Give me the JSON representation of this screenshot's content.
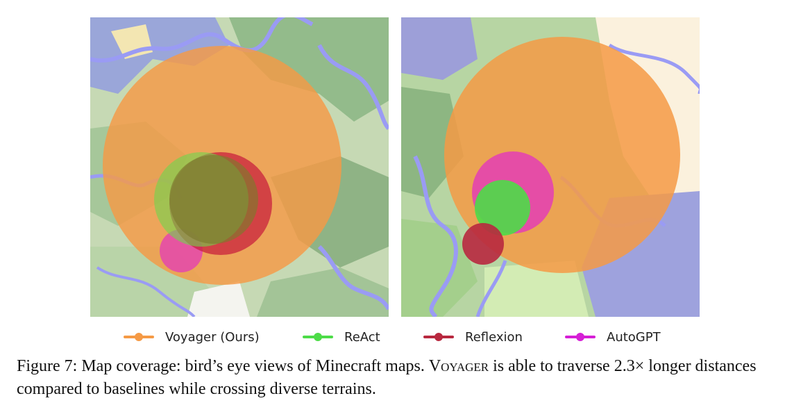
{
  "colors": {
    "voyager": "#f59a45",
    "react": "#4ddc48",
    "reflexion": "#b8283f",
    "autogpt": "#e33bb8",
    "water": "#9a9bf4",
    "forest": "#8eb886",
    "plains": "#c9dbb7",
    "sand": "#f5e7b4",
    "snow": "#faf0dc"
  },
  "legend": [
    {
      "key": "voyager",
      "label": "Voyager (Ours)"
    },
    {
      "key": "react",
      "label": "ReAct"
    },
    {
      "key": "reflexion",
      "label": "Reflexion"
    },
    {
      "key": "autogpt",
      "label": "AutoGPT"
    }
  ],
  "caption": {
    "prefix": "Figure 7: Map coverage: bird’s eye views of Minecraft maps.",
    "name": "Voyager",
    "suffix": "is able to traverse 2.3× longer distances compared to baselines while crossing diverse terrains."
  }
}
